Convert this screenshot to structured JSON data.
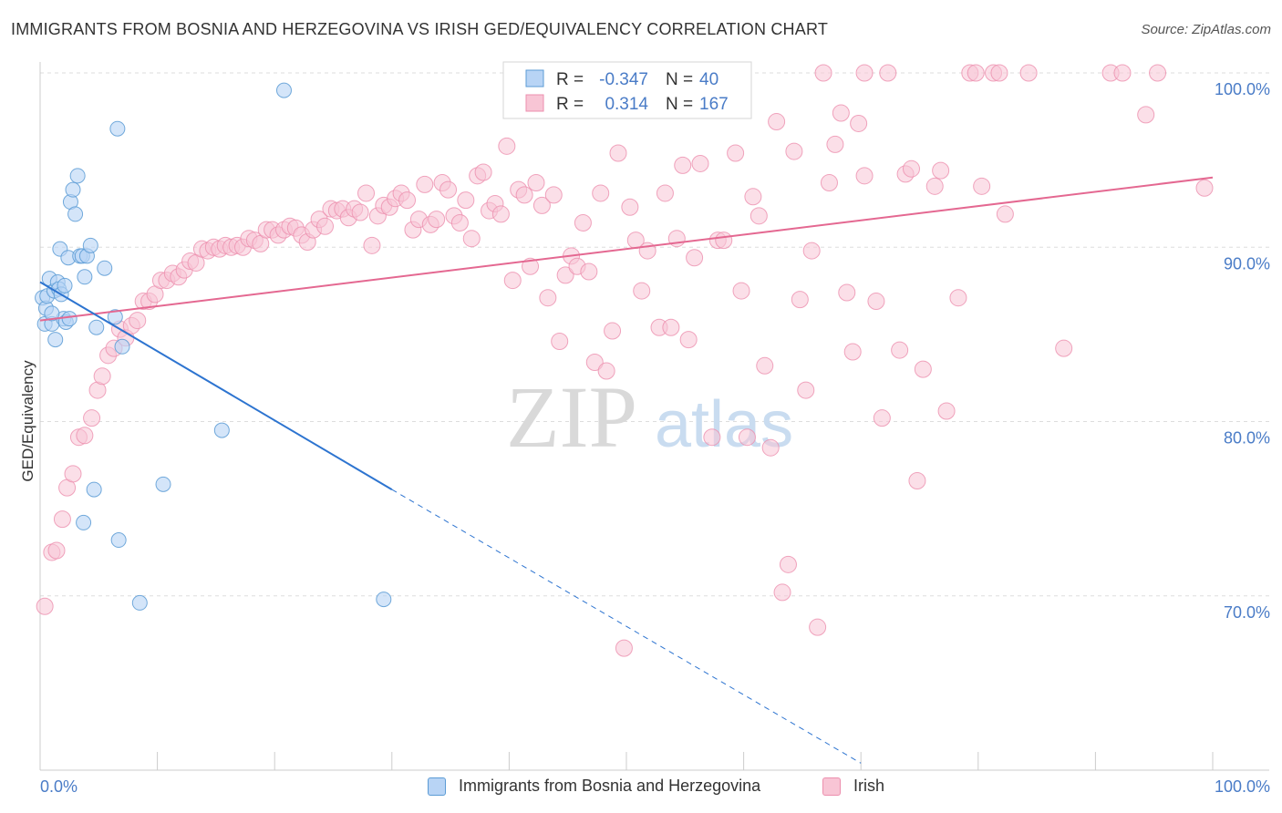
{
  "title": "IMMIGRANTS FROM BOSNIA AND HERZEGOVINA VS IRISH GED/EQUIVALENCY CORRELATION CHART",
  "source": "Source: ZipAtlas.com",
  "watermark": {
    "zip": "ZIP",
    "atlas": "atlas"
  },
  "colors": {
    "blue_fill": "#b8d4f5",
    "blue_stroke": "#5b9bd5",
    "blue_line": "#2d74d0",
    "pink_fill": "#f8c5d5",
    "pink_stroke": "#ec8fae",
    "pink_line": "#e46891",
    "axis_text": "#4a7cc7",
    "grid": "#dddddd"
  },
  "legend_box": {
    "row1": {
      "r_label": "R =",
      "r_value": "-0.347",
      "n_label": "N =",
      "n_value": "40"
    },
    "row2": {
      "r_label": "R =",
      "r_value": "0.314",
      "n_label": "N =",
      "n_value": "167"
    }
  },
  "chart_data": {
    "type": "scatter",
    "xlabel": "",
    "ylabel": "GED/Equivalency",
    "xlim": [
      0,
      100
    ],
    "ylim": [
      60,
      100
    ],
    "x_tick_labels": [
      "0.0%",
      "100.0%"
    ],
    "y_ticks": [
      70,
      80,
      90,
      100
    ],
    "y_tick_labels": [
      "70.0%",
      "80.0%",
      "90.0%",
      "100.0%"
    ],
    "grid": true,
    "legend": "bottom",
    "series": [
      {
        "name": "Immigrants from Bosnia and Herzegovina",
        "color": "#5b9bd5",
        "trend": {
          "x0": 0,
          "y0": 88.0,
          "x1": 30,
          "y1": 76.1,
          "dash_to_x": 70,
          "dash_to_y": 60.4
        },
        "points": [
          [
            0.2,
            87.1
          ],
          [
            0.4,
            85.6
          ],
          [
            0.5,
            86.5
          ],
          [
            0.6,
            87.2
          ],
          [
            0.8,
            88.2
          ],
          [
            1.0,
            85.6
          ],
          [
            1.2,
            87.5
          ],
          [
            1.3,
            84.7
          ],
          [
            1.5,
            88.0
          ],
          [
            1.6,
            87.6
          ],
          [
            1.7,
            89.9
          ],
          [
            1.8,
            87.3
          ],
          [
            2.0,
            85.9
          ],
          [
            2.1,
            87.8
          ],
          [
            2.2,
            85.7
          ],
          [
            2.4,
            89.4
          ],
          [
            2.6,
            92.6
          ],
          [
            2.8,
            93.3
          ],
          [
            3.0,
            91.9
          ],
          [
            3.2,
            94.1
          ],
          [
            3.4,
            89.5
          ],
          [
            3.6,
            89.5
          ],
          [
            3.8,
            88.3
          ],
          [
            4.0,
            89.5
          ],
          [
            4.3,
            90.1
          ],
          [
            4.8,
            85.4
          ],
          [
            5.5,
            88.8
          ],
          [
            6.4,
            86.0
          ],
          [
            6.6,
            96.8
          ],
          [
            7.0,
            84.3
          ],
          [
            8.5,
            69.6
          ],
          [
            10.5,
            76.4
          ],
          [
            15.5,
            79.5
          ],
          [
            20.8,
            99.0
          ],
          [
            29.3,
            69.8
          ],
          [
            3.7,
            74.2
          ],
          [
            4.6,
            76.1
          ],
          [
            6.7,
            73.2
          ],
          [
            1.0,
            86.2
          ],
          [
            2.5,
            85.9
          ]
        ]
      },
      {
        "name": "Irish",
        "color": "#ec8fae",
        "trend": {
          "x0": 0,
          "y0": 85.8,
          "x1": 100,
          "y1": 94.0
        },
        "points": [
          [
            0.4,
            69.4
          ],
          [
            1.0,
            72.5
          ],
          [
            1.4,
            72.6
          ],
          [
            1.9,
            74.4
          ],
          [
            2.3,
            76.2
          ],
          [
            2.8,
            77.0
          ],
          [
            3.3,
            79.1
          ],
          [
            3.8,
            79.2
          ],
          [
            4.4,
            80.2
          ],
          [
            4.9,
            81.8
          ],
          [
            5.3,
            82.6
          ],
          [
            5.8,
            83.8
          ],
          [
            6.3,
            84.2
          ],
          [
            6.8,
            85.3
          ],
          [
            7.3,
            84.8
          ],
          [
            7.8,
            85.5
          ],
          [
            8.3,
            85.8
          ],
          [
            8.8,
            86.9
          ],
          [
            9.3,
            86.9
          ],
          [
            9.8,
            87.3
          ],
          [
            10.3,
            88.1
          ],
          [
            10.8,
            88.1
          ],
          [
            11.3,
            88.5
          ],
          [
            11.8,
            88.3
          ],
          [
            12.3,
            88.7
          ],
          [
            12.8,
            89.2
          ],
          [
            13.3,
            89.1
          ],
          [
            13.8,
            89.9
          ],
          [
            14.3,
            89.8
          ],
          [
            14.8,
            90.0
          ],
          [
            15.3,
            89.9
          ],
          [
            15.8,
            90.1
          ],
          [
            16.3,
            90.0
          ],
          [
            16.8,
            90.1
          ],
          [
            17.3,
            90.0
          ],
          [
            17.8,
            90.5
          ],
          [
            18.3,
            90.4
          ],
          [
            18.8,
            90.2
          ],
          [
            19.3,
            91.0
          ],
          [
            19.8,
            91.0
          ],
          [
            20.3,
            90.7
          ],
          [
            20.8,
            91.0
          ],
          [
            21.3,
            91.2
          ],
          [
            21.8,
            91.1
          ],
          [
            22.3,
            90.7
          ],
          [
            22.8,
            90.3
          ],
          [
            23.3,
            91.0
          ],
          [
            23.8,
            91.6
          ],
          [
            24.3,
            91.2
          ],
          [
            24.8,
            92.2
          ],
          [
            25.3,
            92.1
          ],
          [
            25.8,
            92.2
          ],
          [
            26.3,
            91.7
          ],
          [
            26.8,
            92.2
          ],
          [
            27.3,
            92.0
          ],
          [
            27.8,
            93.1
          ],
          [
            28.3,
            90.1
          ],
          [
            28.8,
            91.8
          ],
          [
            29.3,
            92.4
          ],
          [
            29.8,
            92.3
          ],
          [
            30.3,
            92.8
          ],
          [
            30.8,
            93.1
          ],
          [
            31.3,
            92.7
          ],
          [
            31.8,
            91.0
          ],
          [
            32.3,
            91.6
          ],
          [
            32.8,
            93.6
          ],
          [
            33.3,
            91.3
          ],
          [
            33.8,
            91.6
          ],
          [
            34.3,
            93.7
          ],
          [
            34.8,
            93.3
          ],
          [
            35.3,
            91.8
          ],
          [
            35.8,
            91.4
          ],
          [
            36.3,
            92.7
          ],
          [
            36.8,
            90.5
          ],
          [
            37.3,
            94.1
          ],
          [
            37.8,
            94.3
          ],
          [
            38.3,
            92.1
          ],
          [
            38.8,
            92.5
          ],
          [
            39.3,
            91.9
          ],
          [
            39.8,
            95.8
          ],
          [
            40.3,
            88.1
          ],
          [
            40.8,
            93.3
          ],
          [
            41.3,
            93.0
          ],
          [
            41.8,
            88.9
          ],
          [
            42.3,
            93.7
          ],
          [
            42.8,
            92.4
          ],
          [
            43.3,
            87.1
          ],
          [
            43.8,
            93.0
          ],
          [
            44.3,
            84.6
          ],
          [
            44.8,
            88.4
          ],
          [
            45.3,
            89.5
          ],
          [
            45.8,
            88.9
          ],
          [
            46.3,
            91.4
          ],
          [
            46.8,
            88.6
          ],
          [
            47.3,
            83.4
          ],
          [
            47.8,
            93.1
          ],
          [
            48.3,
            82.9
          ],
          [
            48.8,
            85.2
          ],
          [
            49.3,
            95.4
          ],
          [
            49.8,
            67.0
          ],
          [
            50.3,
            92.3
          ],
          [
            50.8,
            90.4
          ],
          [
            51.3,
            87.5
          ],
          [
            51.8,
            89.8
          ],
          [
            52.8,
            85.4
          ],
          [
            53.3,
            93.1
          ],
          [
            53.8,
            85.4
          ],
          [
            54.3,
            90.5
          ],
          [
            54.8,
            94.7
          ],
          [
            55.3,
            84.7
          ],
          [
            55.8,
            89.4
          ],
          [
            56.3,
            94.8
          ],
          [
            57.3,
            79.1
          ],
          [
            57.8,
            90.4
          ],
          [
            58.3,
            90.4
          ],
          [
            59.3,
            95.4
          ],
          [
            59.8,
            87.5
          ],
          [
            60.3,
            79.1
          ],
          [
            60.8,
            92.9
          ],
          [
            61.3,
            91.8
          ],
          [
            61.8,
            83.2
          ],
          [
            62.3,
            78.5
          ],
          [
            62.8,
            97.2
          ],
          [
            63.3,
            70.2
          ],
          [
            63.8,
            71.8
          ],
          [
            64.3,
            95.5
          ],
          [
            64.8,
            87.0
          ],
          [
            65.3,
            81.8
          ],
          [
            65.8,
            89.8
          ],
          [
            66.3,
            68.2
          ],
          [
            67.3,
            93.7
          ],
          [
            67.8,
            95.9
          ],
          [
            68.3,
            97.7
          ],
          [
            68.8,
            87.4
          ],
          [
            69.3,
            84.0
          ],
          [
            69.8,
            97.1
          ],
          [
            70.3,
            94.1
          ],
          [
            71.3,
            86.9
          ],
          [
            71.8,
            80.2
          ],
          [
            72.3,
            100.0
          ],
          [
            73.3,
            84.1
          ],
          [
            73.8,
            94.2
          ],
          [
            74.3,
            94.5
          ],
          [
            74.8,
            76.6
          ],
          [
            75.3,
            83.0
          ],
          [
            76.3,
            93.5
          ],
          [
            76.8,
            94.4
          ],
          [
            77.3,
            80.6
          ],
          [
            78.3,
            87.1
          ],
          [
            79.3,
            100.0
          ],
          [
            79.8,
            100.0
          ],
          [
            80.3,
            93.5
          ],
          [
            81.3,
            100.0
          ],
          [
            81.8,
            100.0
          ],
          [
            82.3,
            91.9
          ],
          [
            84.3,
            100.0
          ],
          [
            87.3,
            84.2
          ],
          [
            91.3,
            100.0
          ],
          [
            92.3,
            100.0
          ],
          [
            94.3,
            97.6
          ],
          [
            95.3,
            100.0
          ],
          [
            99.3,
            93.4
          ],
          [
            70.3,
            100.0
          ],
          [
            66.8,
            100.0
          ],
          [
            55.3,
            100.0
          ]
        ]
      }
    ]
  },
  "bottom_legend": {
    "item1": "Immigrants from Bosnia and Herzegovina",
    "item2": "Irish"
  }
}
